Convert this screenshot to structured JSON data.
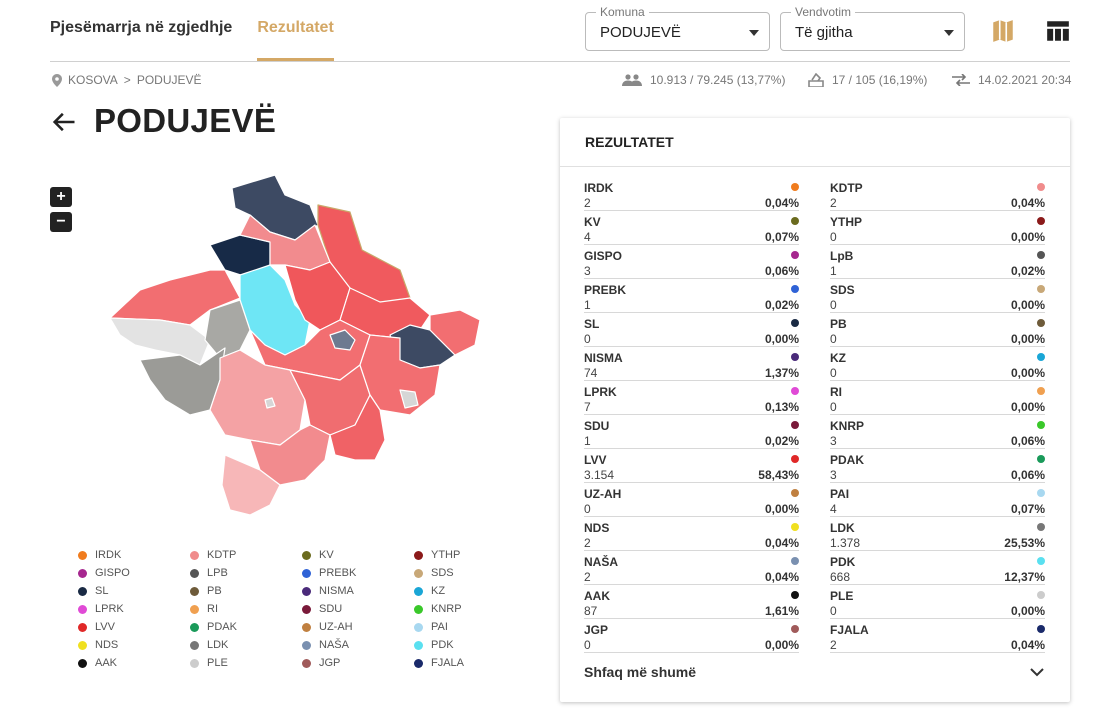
{
  "tabs": [
    {
      "label": "Pjesëmarrja në zgjedhje"
    },
    {
      "label": "Rezultatet"
    }
  ],
  "filters": {
    "komuna": {
      "legend": "Komuna",
      "value": "PODUJEVË"
    },
    "vendvotim": {
      "legend": "Vendvotim",
      "value": "Të gjitha"
    }
  },
  "icons": {
    "map": "map-icon",
    "table": "table-icon",
    "location": "location-pin-icon",
    "people": "people-icon",
    "ballot": "ballot-box-icon",
    "sync": "sync-arrows-icon",
    "back": "arrow-back-icon"
  },
  "breadcrumb": {
    "root": "KOSOVA",
    "separator": ">",
    "current": "PODUJEVË"
  },
  "stats": {
    "turnout": "10.913 / 79.245 (13,77%)",
    "stations": "17 / 105 (16,19%)",
    "updated": "14.02.2021 20:34"
  },
  "page_title": "PODUJEVË",
  "zoom": {
    "in": "+",
    "out": "−"
  },
  "results": {
    "title": "REZULTATET",
    "show_more": "Shfaq më shumë",
    "items": [
      {
        "name": "IRDK",
        "votes": "2",
        "pct": "0,04%",
        "color": "#f07c1e"
      },
      {
        "name": "KDTP",
        "votes": "2",
        "pct": "0,04%",
        "color": "#f08c8c"
      },
      {
        "name": "KV",
        "votes": "4",
        "pct": "0,07%",
        "color": "#6b6b1e"
      },
      {
        "name": "YTHP",
        "votes": "0",
        "pct": "0,00%",
        "color": "#8b1a1a"
      },
      {
        "name": "GISPO",
        "votes": "3",
        "pct": "0,06%",
        "color": "#a6278f"
      },
      {
        "name": "LpB",
        "votes": "1",
        "pct": "0,02%",
        "color": "#555555"
      },
      {
        "name": "PREBK",
        "votes": "1",
        "pct": "0,02%",
        "color": "#2f62d6"
      },
      {
        "name": "SDS",
        "votes": "0",
        "pct": "0,00%",
        "color": "#c8a878"
      },
      {
        "name": "SL",
        "votes": "0",
        "pct": "0,00%",
        "color": "#1a2a44"
      },
      {
        "name": "PB",
        "votes": "0",
        "pct": "0,00%",
        "color": "#6e5b3a"
      },
      {
        "name": "NISMA",
        "votes": "74",
        "pct": "1,37%",
        "color": "#4a2a7a"
      },
      {
        "name": "KZ",
        "votes": "0",
        "pct": "0,00%",
        "color": "#1aa6d6"
      },
      {
        "name": "LPRK",
        "votes": "7",
        "pct": "0,13%",
        "color": "#e04ad6"
      },
      {
        "name": "RI",
        "votes": "0",
        "pct": "0,00%",
        "color": "#f0a050"
      },
      {
        "name": "SDU",
        "votes": "1",
        "pct": "0,02%",
        "color": "#7a1a3a"
      },
      {
        "name": "KNRP",
        "votes": "3",
        "pct": "0,06%",
        "color": "#3ac82a"
      },
      {
        "name": "LVV",
        "votes": "3.154",
        "pct": "58,43%",
        "color": "#e02828"
      },
      {
        "name": "PDAK",
        "votes": "3",
        "pct": "0,06%",
        "color": "#1a9a5a"
      },
      {
        "name": "UZ-AH",
        "votes": "0",
        "pct": "0,00%",
        "color": "#c08040"
      },
      {
        "name": "PAI",
        "votes": "4",
        "pct": "0,07%",
        "color": "#a8d8f0"
      },
      {
        "name": "NDS",
        "votes": "2",
        "pct": "0,04%",
        "color": "#f0e020"
      },
      {
        "name": "LDK",
        "votes": "1.378",
        "pct": "25,53%",
        "color": "#777777"
      },
      {
        "name": "NAŠA",
        "votes": "2",
        "pct": "0,04%",
        "color": "#7a90b0"
      },
      {
        "name": "PDK",
        "votes": "668",
        "pct": "12,37%",
        "color": "#5ae0f0"
      },
      {
        "name": "AAK",
        "votes": "87",
        "pct": "1,61%",
        "color": "#111111"
      },
      {
        "name": "PLE",
        "votes": "0",
        "pct": "0,00%",
        "color": "#cccccc"
      },
      {
        "name": "JGP",
        "votes": "0",
        "pct": "0,00%",
        "color": "#a05a5a"
      },
      {
        "name": "FJALA",
        "votes": "2",
        "pct": "0,04%",
        "color": "#1a2a6a"
      }
    ]
  },
  "legend": [
    {
      "name": "IRDK",
      "color": "#f07c1e"
    },
    {
      "name": "KDTP",
      "color": "#f08c8c"
    },
    {
      "name": "KV",
      "color": "#6b6b1e"
    },
    {
      "name": "YTHP",
      "color": "#8b1a1a"
    },
    {
      "name": "GISPO",
      "color": "#a6278f"
    },
    {
      "name": "LPB",
      "color": "#555555"
    },
    {
      "name": "PREBK",
      "color": "#2f62d6"
    },
    {
      "name": "SDS",
      "color": "#c8a878"
    },
    {
      "name": "SL",
      "color": "#1a2a44"
    },
    {
      "name": "PB",
      "color": "#6e5b3a"
    },
    {
      "name": "NISMA",
      "color": "#4a2a7a"
    },
    {
      "name": "KZ",
      "color": "#1aa6d6"
    },
    {
      "name": "LPRK",
      "color": "#e04ad6"
    },
    {
      "name": "RI",
      "color": "#f0a050"
    },
    {
      "name": "SDU",
      "color": "#7a1a3a"
    },
    {
      "name": "KNRP",
      "color": "#3ac82a"
    },
    {
      "name": "LVV",
      "color": "#e02828"
    },
    {
      "name": "PDAK",
      "color": "#1a9a5a"
    },
    {
      "name": "UZ-AH",
      "color": "#c08040"
    },
    {
      "name": "PAI",
      "color": "#a8d8f0"
    },
    {
      "name": "NDS",
      "color": "#f0e020"
    },
    {
      "name": "LDK",
      "color": "#777777"
    },
    {
      "name": "NAŠA",
      "color": "#7a90b0"
    },
    {
      "name": "PDK",
      "color": "#5ae0f0"
    },
    {
      "name": "AAK",
      "color": "#111111"
    },
    {
      "name": "PLE",
      "color": "#cccccc"
    },
    {
      "name": "JGP",
      "color": "#a05a5a"
    },
    {
      "name": "FJALA",
      "color": "#1a2a6a"
    }
  ]
}
